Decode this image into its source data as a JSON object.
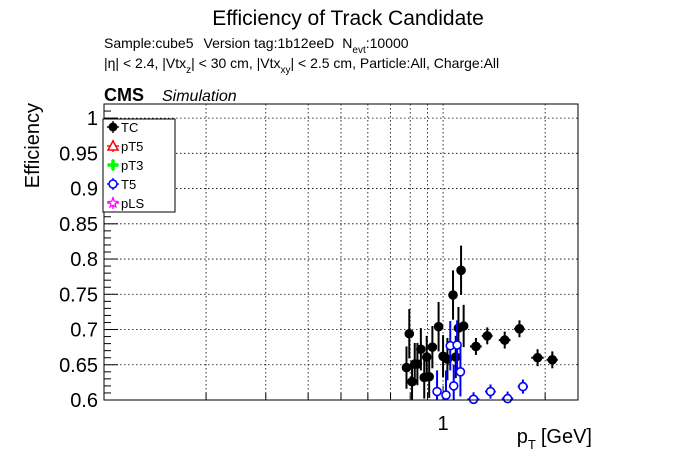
{
  "chart_data": {
    "type": "scatter",
    "title": "Efficiency of Track Candidate",
    "subtitle_1": {
      "sample": "Sample:cube5",
      "version": "Version tag:1b12eeD",
      "n_sym": "N",
      "n_sub": "evt",
      "n_val": ":10000"
    },
    "subtitle_2": {
      "p1": "|η| < 2.4, |Vtx",
      "s1": "z",
      "p2": "| < 30 cm, |Vtx",
      "s2": "xy",
      "p3": "| < 2.5 cm, Particle:All, Charge:All"
    },
    "cms_label": "CMS",
    "simulation_label": "Simulation",
    "ylabel": "Efficiency",
    "xlabel_main": "p",
    "xlabel_sub": "T",
    "xlabel_unit": "[GeV]",
    "xscale": "log",
    "xlim": [
      0.1,
      2.5
    ],
    "ylim": [
      0.6,
      1.02
    ],
    "x_ticks": [
      {
        "v": 1,
        "label": "1"
      }
    ],
    "y_ticks": [
      {
        "v": 0.6,
        "label": "0.6"
      },
      {
        "v": 0.65,
        "label": "0.65"
      },
      {
        "v": 0.7,
        "label": "0.7"
      },
      {
        "v": 0.75,
        "label": "0.75"
      },
      {
        "v": 0.8,
        "label": "0.8"
      },
      {
        "v": 0.85,
        "label": "0.85"
      },
      {
        "v": 0.9,
        "label": "0.9"
      },
      {
        "v": 0.95,
        "label": "0.95"
      },
      {
        "v": 1,
        "label": "1"
      }
    ],
    "grid": true,
    "legend_position": "top-left",
    "legend": [
      {
        "name": "TC",
        "color": "#000000",
        "marker": "filled-circle"
      },
      {
        "name": "pT5",
        "color": "#ff0000",
        "marker": "open-triangle"
      },
      {
        "name": "pT3",
        "color": "#00ff00",
        "marker": "filled-cross"
      },
      {
        "name": "T5",
        "color": "#0000ff",
        "marker": "open-circle"
      },
      {
        "name": "pLS",
        "color": "#ff00ff",
        "marker": "open-star"
      }
    ],
    "series": [
      {
        "name": "TC",
        "color": "#000000",
        "filled": true,
        "points": [
          {
            "x": 0.78,
            "y": 0.646,
            "e": 0.03
          },
          {
            "x": 0.795,
            "y": 0.694,
            "e": 0.035
          },
          {
            "x": 0.81,
            "y": 0.626,
            "e": 0.03
          },
          {
            "x": 0.825,
            "y": 0.651,
            "e": 0.03
          },
          {
            "x": 0.84,
            "y": 0.651,
            "e": 0.03
          },
          {
            "x": 0.86,
            "y": 0.672,
            "e": 0.03
          },
          {
            "x": 0.88,
            "y": 0.632,
            "e": 0.03
          },
          {
            "x": 0.895,
            "y": 0.661,
            "e": 0.03
          },
          {
            "x": 0.91,
            "y": 0.633,
            "e": 0.03
          },
          {
            "x": 0.93,
            "y": 0.675,
            "e": 0.03
          },
          {
            "x": 0.97,
            "y": 0.704,
            "e": 0.035
          },
          {
            "x": 1.0,
            "y": 0.662,
            "e": 0.03
          },
          {
            "x": 1.03,
            "y": 0.658,
            "e": 0.03
          },
          {
            "x": 1.07,
            "y": 0.749,
            "e": 0.035
          },
          {
            "x": 1.09,
            "y": 0.661,
            "e": 0.03
          },
          {
            "x": 1.11,
            "y": 0.702,
            "e": 0.03
          },
          {
            "x": 1.13,
            "y": 0.784,
            "e": 0.035
          },
          {
            "x": 1.15,
            "y": 0.705,
            "e": 0.03
          },
          {
            "x": 1.25,
            "y": 0.676,
            "e": 0.012,
            "xe": 0.05
          },
          {
            "x": 1.35,
            "y": 0.691,
            "e": 0.012,
            "xe": 0.05
          },
          {
            "x": 1.52,
            "y": 0.685,
            "e": 0.012,
            "xe": 0.06
          },
          {
            "x": 1.68,
            "y": 0.701,
            "e": 0.012,
            "xe": 0.06
          },
          {
            "x": 1.9,
            "y": 0.66,
            "e": 0.012,
            "xe": 0.08
          },
          {
            "x": 2.1,
            "y": 0.657,
            "e": 0.012,
            "xe": 0.08
          }
        ]
      },
      {
        "name": "T5",
        "color": "#0000ff",
        "filled": false,
        "points": [
          {
            "x": 0.96,
            "y": 0.612,
            "e": 0.03
          },
          {
            "x": 1.02,
            "y": 0.607,
            "e": 0.035
          },
          {
            "x": 1.05,
            "y": 0.677,
            "e": 0.035
          },
          {
            "x": 1.075,
            "y": 0.62,
            "e": 0.03
          },
          {
            "x": 1.1,
            "y": 0.678,
            "e": 0.035
          },
          {
            "x": 1.125,
            "y": 0.64,
            "e": 0.035
          },
          {
            "x": 1.23,
            "y": 0.601,
            "e": 0.01,
            "xe": 0.05
          },
          {
            "x": 1.38,
            "y": 0.612,
            "e": 0.01,
            "xe": 0.05
          },
          {
            "x": 1.55,
            "y": 0.602,
            "e": 0.01,
            "xe": 0.06
          },
          {
            "x": 1.72,
            "y": 0.619,
            "e": 0.01,
            "xe": 0.06
          }
        ]
      }
    ]
  }
}
